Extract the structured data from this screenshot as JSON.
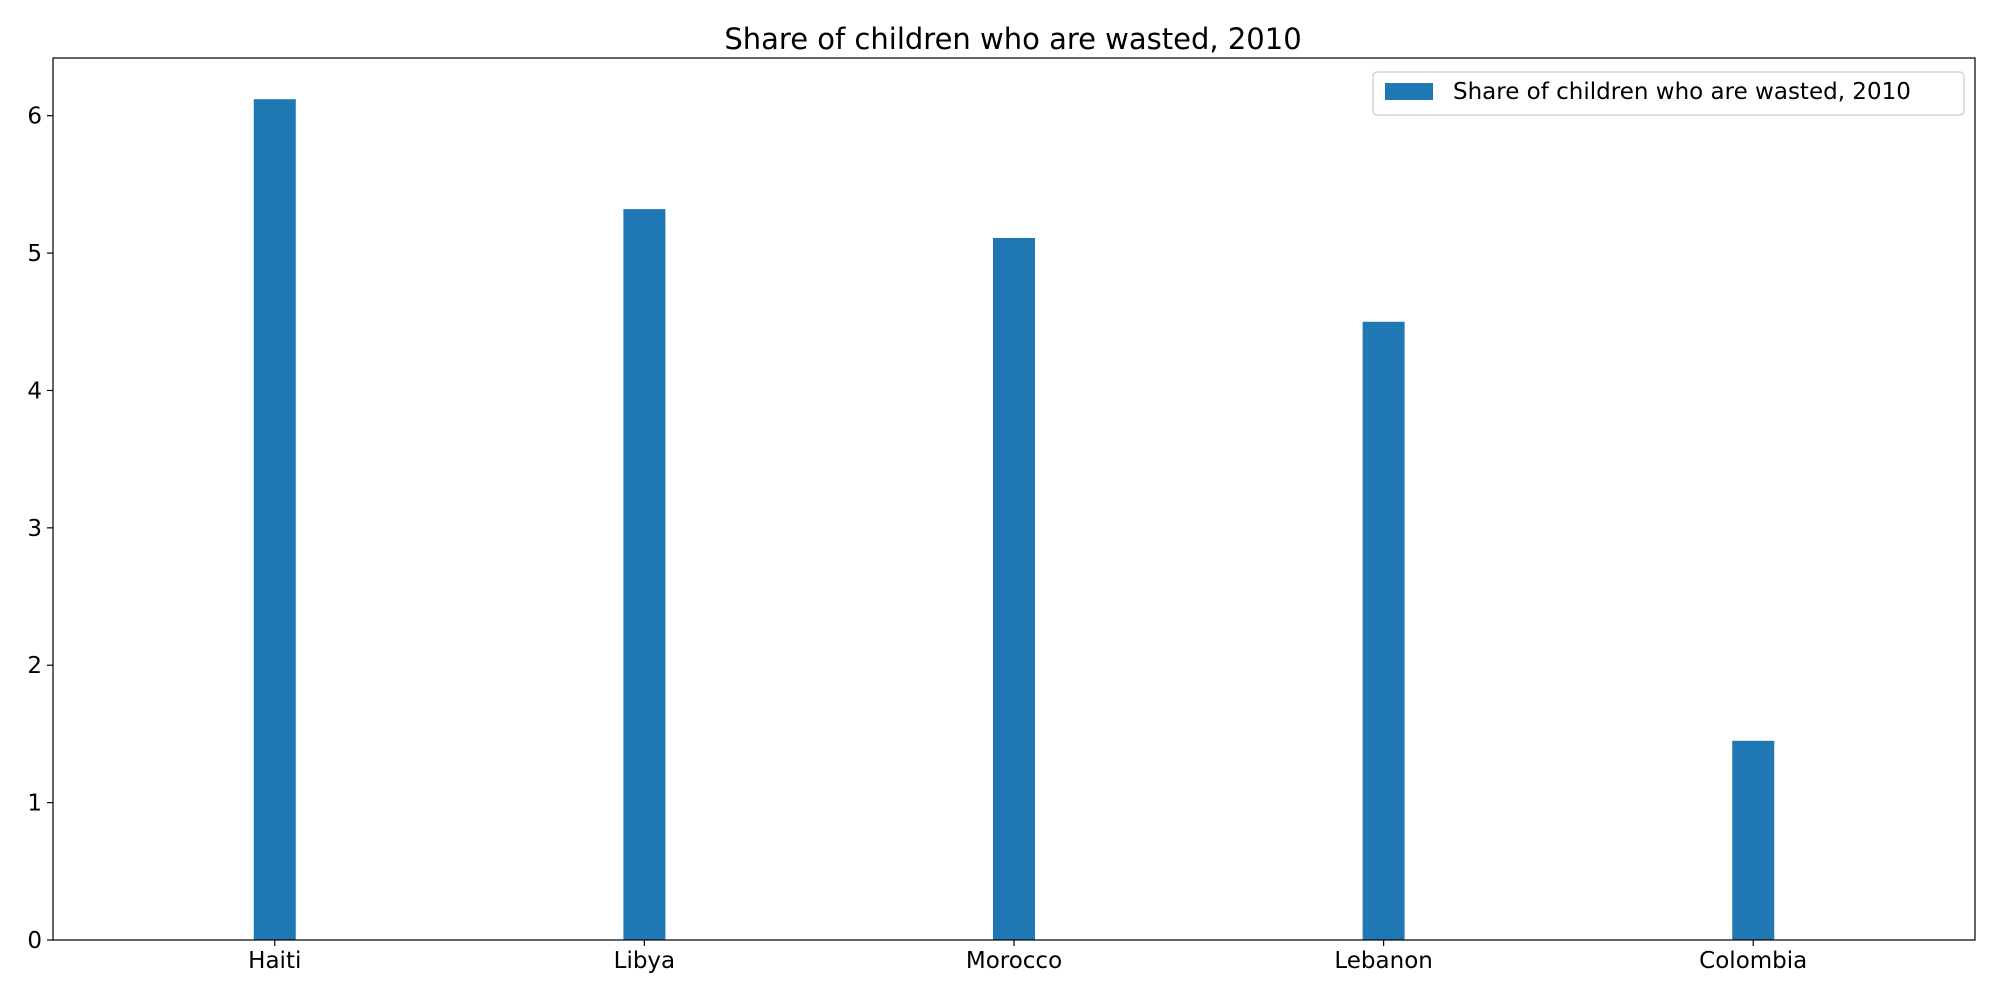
{
  "chart_data": {
    "type": "bar",
    "title": "Share of children who are wasted, 2010",
    "xlabel": "",
    "ylabel": "",
    "categories": [
      "Haiti",
      "Libya",
      "Morocco",
      "Lebanon",
      "Colombia"
    ],
    "series": [
      {
        "name": "Share of children who are wasted, 2010",
        "values": [
          6.12,
          5.32,
          5.11,
          4.5,
          1.45
        ],
        "color": "#1f77b4"
      }
    ],
    "ylim": [
      0,
      6.42
    ],
    "yticks": [
      "0",
      "1",
      "2",
      "3",
      "4",
      "5",
      "6"
    ],
    "grid": false,
    "legend_position": "top-right"
  }
}
